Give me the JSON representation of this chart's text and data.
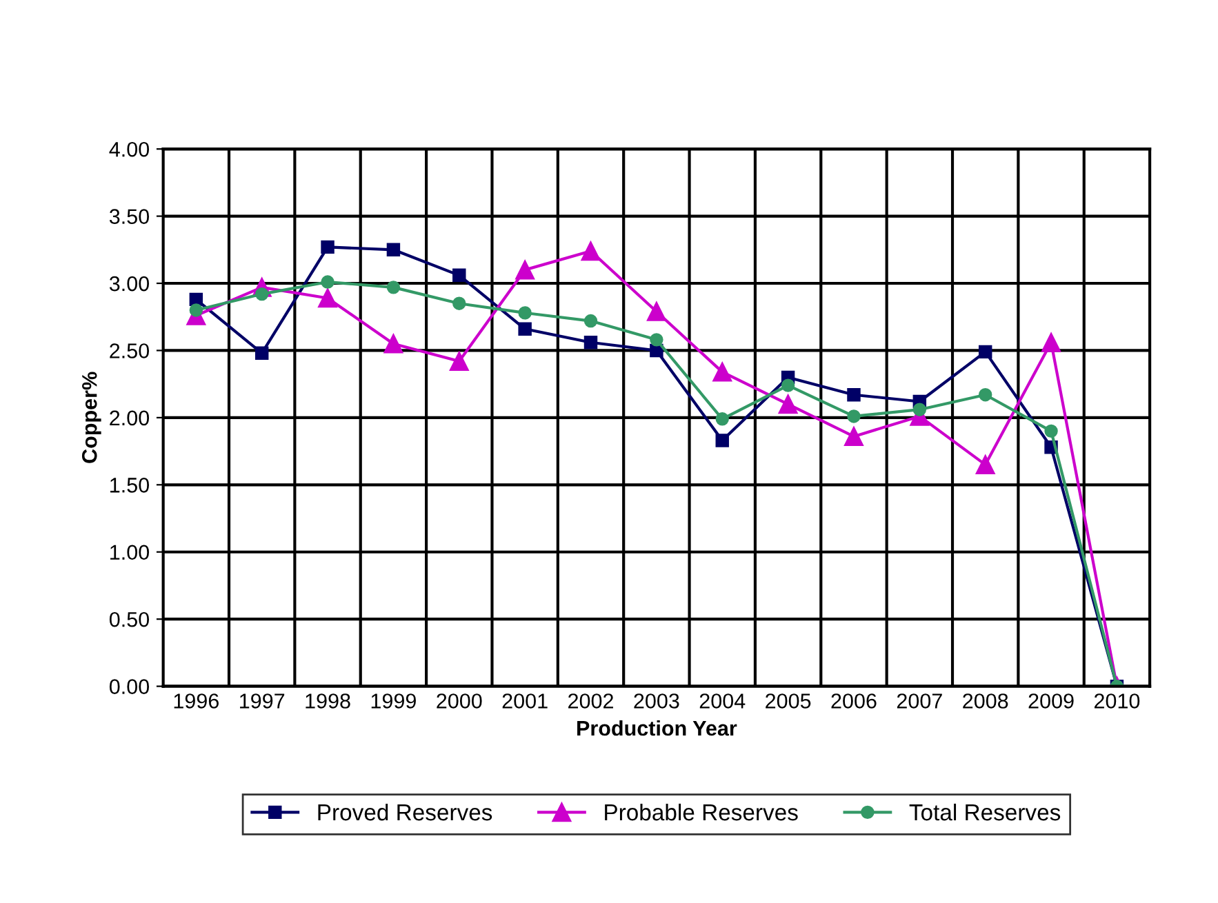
{
  "chart_data": {
    "type": "line",
    "xlabel": "Production Year",
    "ylabel": "Copper%",
    "categories": [
      "1996",
      "1997",
      "1998",
      "1999",
      "2000",
      "2001",
      "2002",
      "2003",
      "2004",
      "2005",
      "2006",
      "2007",
      "2008",
      "2009",
      "2010"
    ],
    "series": [
      {
        "name": "Proved Reserves",
        "color": "#000066",
        "marker": "square",
        "values": [
          2.88,
          2.48,
          3.27,
          3.25,
          3.06,
          2.66,
          2.56,
          2.5,
          1.83,
          2.3,
          2.17,
          2.12,
          2.49,
          1.78,
          0
        ]
      },
      {
        "name": "Probable Reserves",
        "color": "#cc00cc",
        "marker": "triangle",
        "values": [
          2.76,
          2.97,
          2.89,
          2.55,
          2.42,
          3.1,
          3.24,
          2.79,
          2.34,
          2.1,
          1.86,
          2.01,
          1.65,
          2.56,
          0
        ]
      },
      {
        "name": "Total Reserves",
        "color": "#339966",
        "marker": "circle",
        "values": [
          2.8,
          2.92,
          3.01,
          2.97,
          2.85,
          2.78,
          2.72,
          2.58,
          1.99,
          2.24,
          2.01,
          2.06,
          2.17,
          1.9,
          0
        ]
      }
    ],
    "ylim": [
      0,
      4
    ],
    "yticks": [
      {
        "value": 0,
        "label": "0.00"
      },
      {
        "value": 0.5,
        "label": "0.50"
      },
      {
        "value": 1,
        "label": "1.00"
      },
      {
        "value": 1.5,
        "label": "1.50"
      },
      {
        "value": 2,
        "label": "2.00"
      },
      {
        "value": 2.5,
        "label": "2.50"
      },
      {
        "value": 3,
        "label": "3.00"
      },
      {
        "value": 3.5,
        "label": "3.50"
      },
      {
        "value": 4,
        "label": "4.00"
      }
    ],
    "grid": true,
    "legend": "bottom",
    "line_style": "solid"
  }
}
